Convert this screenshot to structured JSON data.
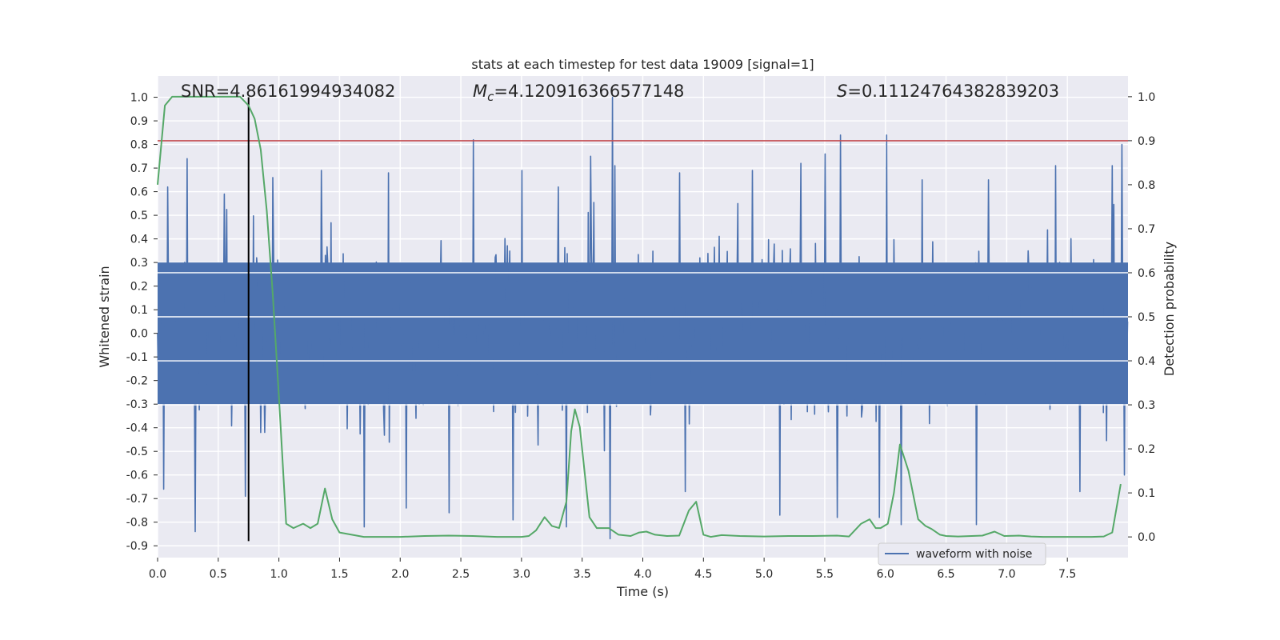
{
  "chart_data": {
    "type": "line",
    "title": "stats at each timestep for test data 19009 [signal=1]",
    "xlabel": "Time (s)",
    "ylabel": "Whitened strain",
    "ylabel_right": "Detection probability",
    "xlim": [
      0.0,
      8.0
    ],
    "ylim": [
      -0.95,
      1.09
    ],
    "ylim_right": [
      -0.047,
      1.047
    ],
    "x_ticks": [
      "0.0",
      "0.5",
      "1.0",
      "1.5",
      "2.0",
      "2.5",
      "3.0",
      "3.5",
      "4.0",
      "4.5",
      "5.0",
      "5.5",
      "6.0",
      "6.5",
      "7.0",
      "7.5"
    ],
    "y_ticks": [
      "1.0",
      "0.9",
      "0.8",
      "0.7",
      "0.6",
      "0.5",
      "0.4",
      "0.3",
      "0.2",
      "0.1",
      "0.0",
      "-0.1",
      "-0.2",
      "-0.3",
      "-0.4",
      "-0.5",
      "-0.6",
      "-0.7",
      "-0.8",
      "-0.9"
    ],
    "y_ticks_right": [
      "1.0",
      "0.9",
      "0.8",
      "0.7",
      "0.6",
      "0.5",
      "0.4",
      "0.3",
      "0.2",
      "0.1",
      "0.0"
    ],
    "annotations": {
      "snr": "SNR=4.86161994934082",
      "mc_symbol": "M",
      "mc_sub": "c",
      "mc_value": "=4.120916366577148",
      "s_symbol": "S",
      "s_value": "=0.11124764382839203"
    },
    "threshold": {
      "value": 0.9,
      "axis": "right",
      "color": "#c44e52"
    },
    "marker_line": {
      "x": 0.75,
      "color": "#000000"
    },
    "legend": {
      "label": "waveform with noise",
      "location": "lower-right"
    },
    "series": [
      {
        "name": "waveform with noise",
        "axis": "left",
        "color": "#4c72b0",
        "envelope_typical": [
          -0.3,
          0.3
        ],
        "peaks": [
          {
            "x": 0.08,
            "y": 0.62
          },
          {
            "x": 0.24,
            "y": 0.74
          },
          {
            "x": 0.55,
            "y": 0.59
          },
          {
            "x": 0.95,
            "y": 0.66
          },
          {
            "x": 1.35,
            "y": 0.69
          },
          {
            "x": 1.9,
            "y": 0.68
          },
          {
            "x": 2.6,
            "y": 0.82
          },
          {
            "x": 3.0,
            "y": 0.69
          },
          {
            "x": 3.3,
            "y": 0.62
          },
          {
            "x": 3.57,
            "y": 0.75
          },
          {
            "x": 3.75,
            "y": 1.0
          },
          {
            "x": 3.77,
            "y": 0.71
          },
          {
            "x": 4.3,
            "y": 0.68
          },
          {
            "x": 4.9,
            "y": 0.69
          },
          {
            "x": 5.3,
            "y": 0.72
          },
          {
            "x": 5.5,
            "y": 0.76
          },
          {
            "x": 5.63,
            "y": 0.84
          },
          {
            "x": 6.01,
            "y": 0.84
          },
          {
            "x": 6.3,
            "y": 0.65
          },
          {
            "x": 6.85,
            "y": 0.65
          },
          {
            "x": 7.4,
            "y": 0.71
          },
          {
            "x": 7.87,
            "y": 0.71
          },
          {
            "x": 7.95,
            "y": 0.8
          }
        ],
        "troughs": [
          {
            "x": 0.05,
            "y": -0.66
          },
          {
            "x": 0.31,
            "y": -0.84
          },
          {
            "x": 0.72,
            "y": -0.69
          },
          {
            "x": 1.7,
            "y": -0.82
          },
          {
            "x": 2.05,
            "y": -0.74
          },
          {
            "x": 2.4,
            "y": -0.76
          },
          {
            "x": 2.93,
            "y": -0.79
          },
          {
            "x": 3.37,
            "y": -0.82
          },
          {
            "x": 3.73,
            "y": -0.87
          },
          {
            "x": 4.35,
            "y": -0.67
          },
          {
            "x": 5.13,
            "y": -0.77
          },
          {
            "x": 5.6,
            "y": -0.78
          },
          {
            "x": 5.95,
            "y": -0.78
          },
          {
            "x": 6.13,
            "y": -0.81
          },
          {
            "x": 6.75,
            "y": -0.81
          },
          {
            "x": 7.6,
            "y": -0.67
          },
          {
            "x": 7.97,
            "y": -0.6
          }
        ]
      },
      {
        "name": "detection probability",
        "axis": "right",
        "color": "#55a868",
        "x": [
          0.0,
          0.06,
          0.12,
          0.2,
          0.35,
          0.55,
          0.68,
          0.75,
          0.8,
          0.85,
          0.9,
          0.95,
          1.0,
          1.06,
          1.12,
          1.2,
          1.26,
          1.32,
          1.38,
          1.44,
          1.5,
          1.6,
          1.7,
          1.8,
          2.0,
          2.2,
          2.4,
          2.6,
          2.8,
          3.0,
          3.06,
          3.12,
          3.19,
          3.25,
          3.31,
          3.37,
          3.41,
          3.44,
          3.48,
          3.56,
          3.62,
          3.72,
          3.8,
          3.9,
          3.97,
          4.03,
          4.1,
          4.2,
          4.3,
          4.38,
          4.44,
          4.5,
          4.56,
          4.65,
          4.8,
          5.0,
          5.2,
          5.4,
          5.6,
          5.7,
          5.8,
          5.87,
          5.92,
          5.96,
          6.02,
          6.07,
          6.12,
          6.19,
          6.27,
          6.33,
          6.38,
          6.45,
          6.5,
          6.6,
          6.8,
          6.9,
          6.98,
          7.1,
          7.2,
          7.3,
          7.5,
          7.7,
          7.8,
          7.87,
          7.94
        ],
        "y": [
          0.8,
          0.98,
          1.0,
          1.0,
          1.0,
          1.0,
          1.0,
          0.98,
          0.95,
          0.88,
          0.74,
          0.55,
          0.32,
          0.03,
          0.02,
          0.03,
          0.02,
          0.03,
          0.11,
          0.04,
          0.01,
          0.005,
          0.0,
          0.0,
          0.0,
          0.002,
          0.003,
          0.002,
          0.0,
          0.0,
          0.002,
          0.015,
          0.045,
          0.025,
          0.02,
          0.08,
          0.24,
          0.29,
          0.25,
          0.045,
          0.02,
          0.02,
          0.005,
          0.002,
          0.01,
          0.012,
          0.005,
          0.002,
          0.003,
          0.06,
          0.08,
          0.005,
          0.0,
          0.004,
          0.002,
          0.001,
          0.002,
          0.002,
          0.003,
          0.001,
          0.03,
          0.04,
          0.02,
          0.02,
          0.03,
          0.1,
          0.21,
          0.15,
          0.04,
          0.025,
          0.018,
          0.005,
          0.002,
          0.001,
          0.003,
          0.012,
          0.002,
          0.003,
          0.001,
          0.0,
          0.0,
          0.0,
          0.001,
          0.01,
          0.12
        ]
      }
    ]
  }
}
